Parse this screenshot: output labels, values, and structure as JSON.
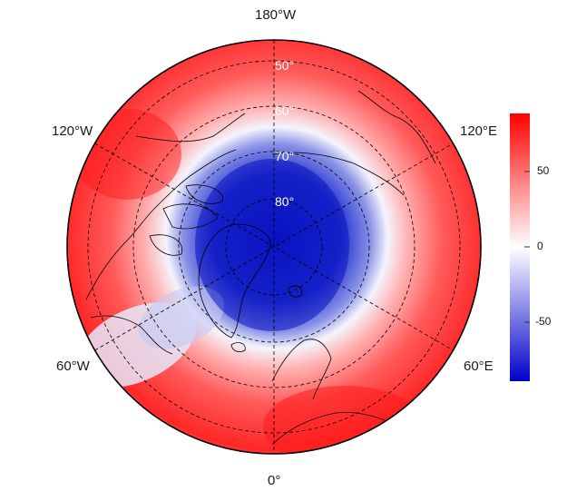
{
  "map": {
    "projection": "north-polar-stereographic",
    "longitude_labels": {
      "top": "180°W",
      "upper_left": "120°W",
      "upper_right": "120°E",
      "lower_left": "60°W",
      "lower_right": "60°E",
      "bottom": "0°"
    },
    "latitude_labels": [
      "50°",
      "60°",
      "70°",
      "80°"
    ],
    "graticule": {
      "latitudes": [
        50,
        60,
        70,
        80
      ],
      "longitude_step": 60,
      "style": "dashed"
    }
  },
  "colorbar": {
    "ticks": [
      "50",
      "0",
      "-50"
    ],
    "range": [
      -90,
      90
    ],
    "colors": {
      "low": "#0000cc",
      "mid": "#ffffff",
      "high": "#ff0000"
    }
  }
}
